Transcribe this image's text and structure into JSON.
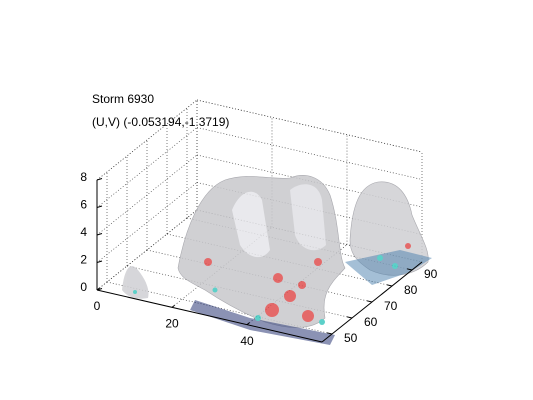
{
  "chart_data": {
    "type": "surface3d",
    "title": "Storm 6930",
    "subtitle": "(U,V) (-0.053194,-1.3719)",
    "xlim": [
      0,
      60
    ],
    "xticks": [
      0,
      20,
      40
    ],
    "ylim": [
      45,
      95
    ],
    "yticks": [
      50,
      60,
      70,
      80,
      90
    ],
    "zlim": [
      0,
      8
    ],
    "zticks": [
      0,
      2,
      4,
      6,
      8
    ],
    "grid": true
  }
}
